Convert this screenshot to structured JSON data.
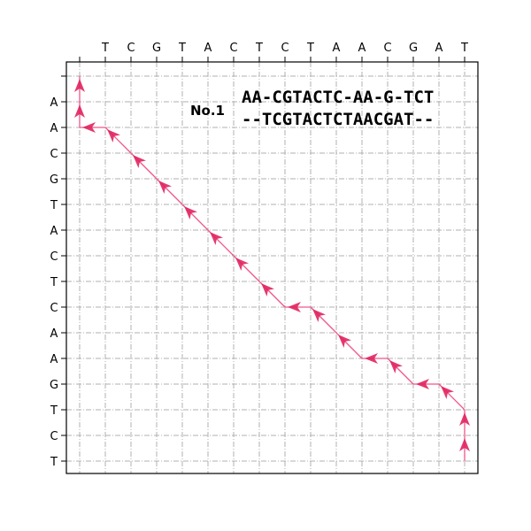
{
  "diagram": {
    "title": "No.1",
    "column_sequence": [
      "T",
      "C",
      "G",
      "T",
      "A",
      "C",
      "T",
      "C",
      "T",
      "A",
      "A",
      "C",
      "G",
      "A",
      "T"
    ],
    "row_sequence": [
      "A",
      "A",
      "C",
      "G",
      "T",
      "A",
      "C",
      "T",
      "C",
      "A",
      "A",
      "G",
      "T",
      "C",
      "T"
    ],
    "alignment": {
      "line1": "AA-CGTACTC-AA-G-TCT",
      "line2": "--TCGTACTCTAACGAT--"
    },
    "traceback_path": [
      [
        15,
        15
      ],
      [
        15,
        14
      ],
      [
        15,
        13
      ],
      [
        14,
        12
      ],
      [
        13,
        12
      ],
      [
        12,
        11
      ],
      [
        11,
        11
      ],
      [
        10,
        10
      ],
      [
        9,
        9
      ],
      [
        8,
        9
      ],
      [
        7,
        8
      ],
      [
        6,
        7
      ],
      [
        5,
        6
      ],
      [
        4,
        5
      ],
      [
        3,
        4
      ],
      [
        2,
        3
      ],
      [
        1,
        2
      ],
      [
        0,
        2
      ],
      [
        0,
        1
      ],
      [
        0,
        0
      ]
    ],
    "colors": {
      "path": "#f0568c",
      "arrow": "#e0245e",
      "grid": "#b0b0b0"
    }
  }
}
